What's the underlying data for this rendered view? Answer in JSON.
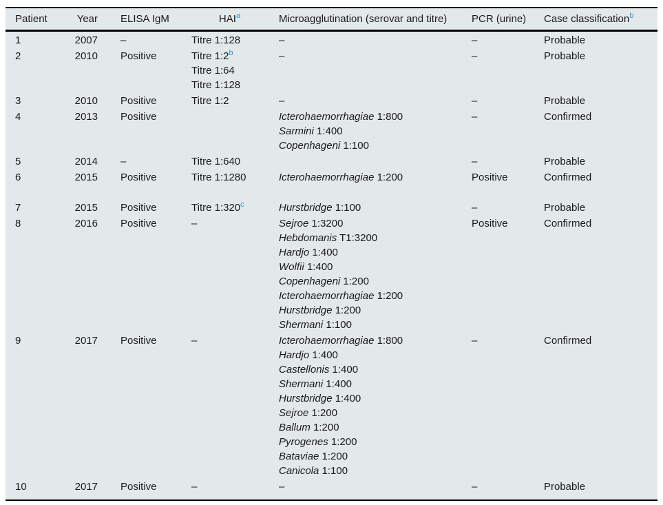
{
  "colors": {
    "table_background": "#e3e8ea",
    "page_background": "#ffffff",
    "rule": "#000000",
    "text": "#1a1a1a",
    "footnote_marker": "#2e9ad2"
  },
  "table": {
    "dash": "–",
    "columns": [
      {
        "id": "patient",
        "label": "Patient",
        "sup": "",
        "align": "left"
      },
      {
        "id": "year",
        "label": "Year",
        "sup": "",
        "align": "right"
      },
      {
        "id": "elisa",
        "label": "ELISA IgM",
        "sup": "",
        "align": "left"
      },
      {
        "id": "hai",
        "label": "HAI",
        "sup": "a",
        "align": "center"
      },
      {
        "id": "micro",
        "label": "Microagglutination (serovar and titre)",
        "sup": "",
        "align": "left"
      },
      {
        "id": "pcr",
        "label": "PCR (urine)",
        "sup": "",
        "align": "left"
      },
      {
        "id": "case",
        "label": "Case classification",
        "sup": "b",
        "align": "left"
      }
    ],
    "rows": [
      {
        "patient": "1",
        "year": "2007",
        "elisa": "–",
        "hai": [
          {
            "text": "Titre 1:128",
            "sup": ""
          }
        ],
        "micro": [
          {
            "dash": true
          }
        ],
        "pcr": "–",
        "case": "Probable",
        "gap_after": false
      },
      {
        "patient": "2",
        "year": "2010",
        "elisa": "Positive",
        "hai": [
          {
            "text": "Titre 1:2",
            "sup": "b"
          },
          {
            "text": "Titre 1:64",
            "sup": ""
          },
          {
            "text": "Titre 1:128",
            "sup": ""
          }
        ],
        "micro": [
          {
            "dash": true
          }
        ],
        "pcr": "–",
        "case": "Probable",
        "gap_after": false
      },
      {
        "patient": "3",
        "year": "2010",
        "elisa": "Positive",
        "hai": [
          {
            "text": "Titre 1:2",
            "sup": ""
          }
        ],
        "micro": [
          {
            "dash": true
          }
        ],
        "pcr": "–",
        "case": "Probable",
        "gap_after": false
      },
      {
        "patient": "4",
        "year": "2013",
        "elisa": "Positive",
        "hai": [],
        "micro": [
          {
            "serovar": "Icterohaemorrhagiae",
            "titre": "1:800"
          },
          {
            "serovar": "Sarmini",
            "titre": "1:400"
          },
          {
            "serovar": "Copenhageni",
            "titre": "1:100"
          }
        ],
        "pcr": "–",
        "case": "Confirmed",
        "gap_after": false
      },
      {
        "patient": "5",
        "year": "2014",
        "elisa": "–",
        "hai": [
          {
            "text": "Titre 1:640",
            "sup": ""
          }
        ],
        "micro": [],
        "pcr": "–",
        "case": "Probable",
        "gap_after": false
      },
      {
        "patient": "6",
        "year": "2015",
        "elisa": "Positive",
        "hai": [
          {
            "text": "Titre 1:1280",
            "sup": ""
          }
        ],
        "micro": [
          {
            "serovar": "Icterohaemorrhagiae",
            "titre": "1:200"
          }
        ],
        "pcr": "Positive",
        "case": "Confirmed",
        "gap_after": true
      },
      {
        "patient": "7",
        "year": "2015",
        "elisa": "Positive",
        "hai": [
          {
            "text": "Titre 1:320",
            "sup": "c"
          }
        ],
        "micro": [
          {
            "serovar": "Hurstbridge",
            "titre": "1:100"
          }
        ],
        "pcr": "–",
        "case": "Probable",
        "gap_after": false
      },
      {
        "patient": "8",
        "year": "2016",
        "elisa": "Positive",
        "hai": [
          {
            "text": "–",
            "sup": ""
          }
        ],
        "micro": [
          {
            "serovar": "Sejroe",
            "titre": "1:3200"
          },
          {
            "serovar": "Hebdomanis",
            "titre": "T1:3200"
          },
          {
            "serovar": "Hardjo",
            "titre": "1:400"
          },
          {
            "serovar": "Wolfii",
            "titre": "1:400"
          },
          {
            "serovar": "Copenhageni",
            "titre": "1:200"
          },
          {
            "serovar": "Icterohaemorrhagiae",
            "titre": "1:200"
          },
          {
            "serovar": "Hurstbridge",
            "titre": "1:200"
          },
          {
            "serovar": "Shermani",
            "titre": "1:100"
          }
        ],
        "pcr": "Positive",
        "case": "Confirmed",
        "gap_after": false
      },
      {
        "patient": "9",
        "year": "2017",
        "elisa": "Positive",
        "hai": [
          {
            "text": "–",
            "sup": ""
          }
        ],
        "micro": [
          {
            "serovar": "Icterohaemorrhagiae",
            "titre": "1:800"
          },
          {
            "serovar": "Hardjo",
            "titre": "1:400"
          },
          {
            "serovar": "Castellonis",
            "titre": "1:400"
          },
          {
            "serovar": "Shermani",
            "titre": "1:400"
          },
          {
            "serovar": "Hurstbridge",
            "titre": "1:400"
          },
          {
            "serovar": "Sejroe",
            "titre": "1:200"
          },
          {
            "serovar": "Ballum",
            "titre": "1:200"
          },
          {
            "serovar": "Pyrogenes",
            "titre": "1:200"
          },
          {
            "serovar": "Bataviae",
            "titre": "1:200"
          },
          {
            "serovar": "Canicola",
            "titre": "1:100"
          }
        ],
        "pcr": "–",
        "case": "Confirmed",
        "gap_after": false
      },
      {
        "patient": "10",
        "year": "2017",
        "elisa": "Positive",
        "hai": [
          {
            "text": "–",
            "sup": ""
          }
        ],
        "micro": [
          {
            "dash": true
          }
        ],
        "pcr": "–",
        "case": "Probable",
        "gap_after": false
      }
    ]
  }
}
